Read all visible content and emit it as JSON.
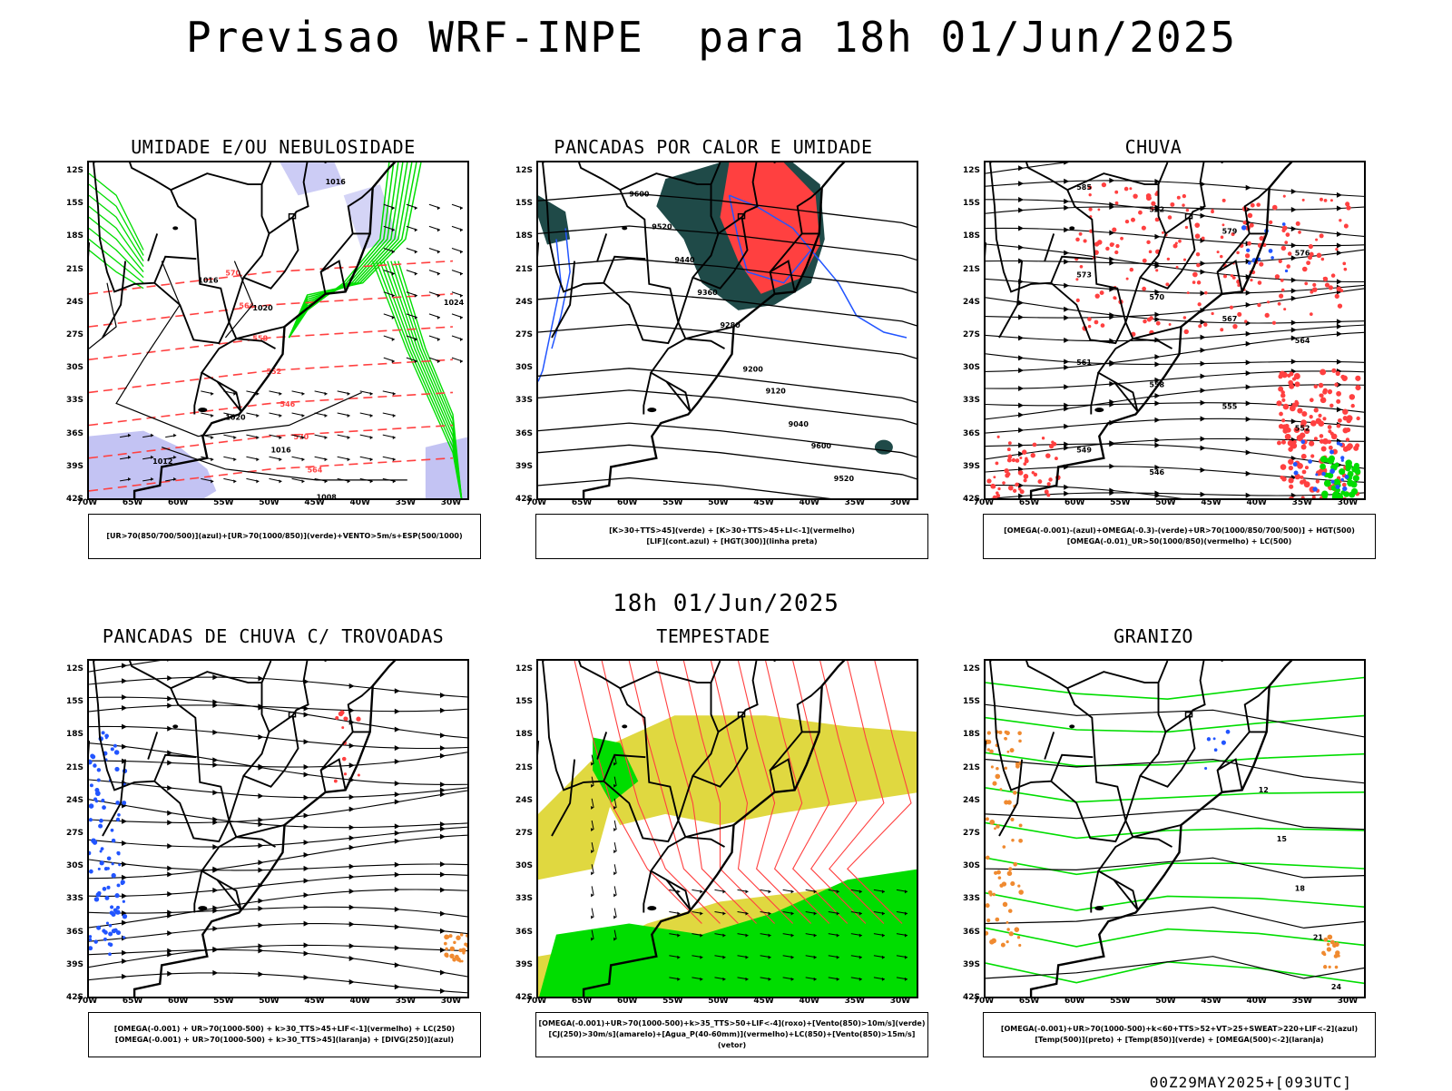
{
  "title": "Previsao WRF-INPE  para 18h 01/Jun/2025",
  "middle_date": "18h 01/Jun/2025",
  "footer": "00Z29MAY2025+[093UTC]",
  "axis": {
    "lat_labels": [
      "12S",
      "15S",
      "18S",
      "21S",
      "24S",
      "27S",
      "30S",
      "33S",
      "36S",
      "39S",
      "42S"
    ],
    "lon_labels": [
      "70W",
      "65W",
      "60W",
      "55W",
      "50W",
      "45W",
      "40W",
      "35W",
      "30W"
    ]
  },
  "panels": [
    {
      "title": "UMIDADE E/OU NEBULOSIDADE",
      "legend": [
        "[UR>70(850/700/500)](azul)+[UR>70(1000/850)](verde)+VENTO>5m/s+ESP(500/1000)"
      ],
      "contour_labels": [
        "1016",
        "1020",
        "1024",
        "1012",
        "1008",
        "570",
        "564",
        "558",
        "552",
        "546"
      ]
    },
    {
      "title": "PANCADAS POR CALOR E UMIDADE",
      "legend": [
        "[K>30+TTS>45](verde) + [K>30+TTS>45+LI<-1](vermelho)",
        "[LIF](cont.azul) + [HGT(300)](linha preta)"
      ],
      "contour_labels": [
        "9600",
        "9520",
        "9440",
        "9360",
        "9280",
        "9200",
        "9120",
        "9040"
      ]
    },
    {
      "title": "CHUVA",
      "legend": [
        "[OMEGA(-0.001)-(azul)+OMEGA(-0.3)-(verde)+UR>70(1000/850/700/500)] + HGT(500)",
        "[OMEGA(-0.01)_UR>50(1000/850)(vermelho) + LC(500)"
      ],
      "contour_labels": [
        "585",
        "582",
        "579",
        "576",
        "573",
        "570",
        "567",
        "564",
        "561",
        "558",
        "555",
        "552",
        "549",
        "546"
      ]
    },
    {
      "title": "PANCADAS DE CHUVA C/ TROVOADAS",
      "legend": [
        "[OMEGA(-0.001) + UR>70(1000-500) + k>30_TTS>45+LIF<-1](vermelho) + LC(250)",
        "[OMEGA(-0.001) + UR>70(1000-500) + k>30_TTS>45](laranja) + [DIVG(250)](azul)"
      ],
      "contour_labels": []
    },
    {
      "title": "TEMPESTADE",
      "legend": [
        "[OMEGA(-0.001)+UR>70(1000-500)+k>35_TTS>50+LIF<-4](roxo)+[Vento(850)>10m/s](verde)",
        "[CJ(250)>30m/s](amarelo)+[Agua_P(40-60mm)](vermelho)+LC(850)+[Vento(850)>15m/s](vetor)"
      ],
      "contour_labels": []
    },
    {
      "title": "GRANIZO",
      "legend": [
        "[OMEGA(-0.001)+UR>70(1000-500)+k<60+TTS>52+VT>25+SWEAT>220+LIF<-2](azul)",
        "[Temp(500)](preto) + [Temp(850)](verde) + [OMEGA(500)<-2](laranja)"
      ],
      "contour_labels": [
        "12",
        "15",
        "18",
        "21",
        "24"
      ]
    }
  ],
  "colors": {
    "red": "#ff4040",
    "green": "#00dd00",
    "blue": "#2255ff",
    "lavender": "#aaaaee",
    "darkteal": "#1f4a48",
    "yellow": "#e0d840",
    "orange": "#f08a30"
  }
}
